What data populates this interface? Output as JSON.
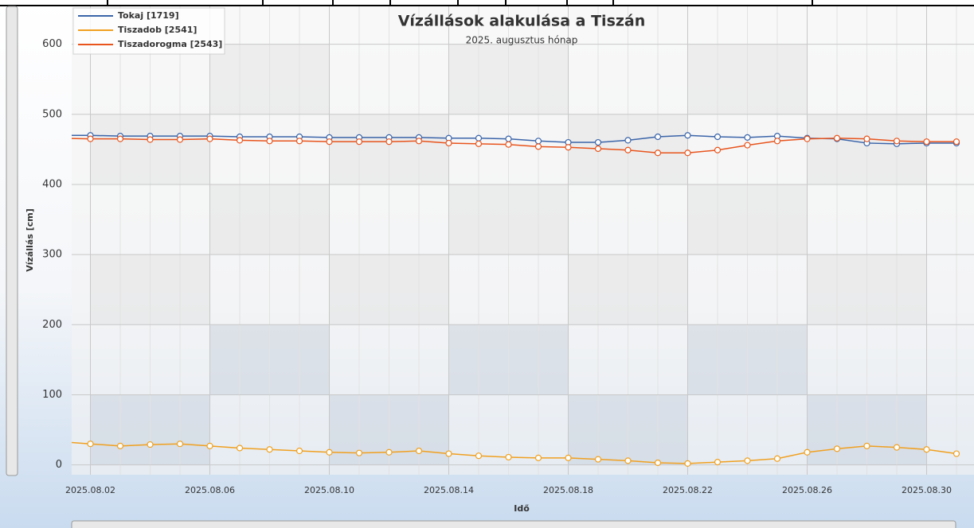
{
  "chart_data": {
    "type": "line",
    "title": "Vízállások alakulása a Tiszán",
    "subtitle": "2025. augusztus hónap",
    "y_label": "Vízállás [cm]",
    "x_label": "Idő",
    "x": [
      "2025.08.01",
      "2025.08.02",
      "2025.08.03",
      "2025.08.04",
      "2025.08.05",
      "2025.08.06",
      "2025.08.07",
      "2025.08.08",
      "2025.08.09",
      "2025.08.10",
      "2025.08.11",
      "2025.08.12",
      "2025.08.13",
      "2025.08.14",
      "2025.08.15",
      "2025.08.16",
      "2025.08.17",
      "2025.08.18",
      "2025.08.19",
      "2025.08.20",
      "2025.08.21",
      "2025.08.22",
      "2025.08.23",
      "2025.08.24",
      "2025.08.25",
      "2025.08.26",
      "2025.08.27",
      "2025.08.28",
      "2025.08.29",
      "2025.08.30",
      "2025.08.31"
    ],
    "series": [
      {
        "name": "Tokaj [1719]",
        "color": "#3a64a8",
        "values": [
          470,
          470,
          469,
          469,
          469,
          469,
          468,
          468,
          468,
          467,
          467,
          467,
          467,
          466,
          466,
          465,
          462,
          460,
          460,
          463,
          468,
          470,
          468,
          467,
          469,
          466,
          465,
          459,
          458,
          459,
          459
        ]
      },
      {
        "name": "Tiszadob [2541]",
        "color": "#f0a020",
        "values": [
          33,
          30,
          27,
          29,
          30,
          27,
          24,
          22,
          20,
          18,
          17,
          18,
          20,
          16,
          13,
          11,
          10,
          10,
          8,
          6,
          3,
          2,
          4,
          6,
          9,
          18,
          23,
          27,
          25,
          22,
          16
        ]
      },
      {
        "name": "Tiszadorogma [2543]",
        "color": "#e8541c",
        "values": [
          466,
          465,
          465,
          464,
          464,
          465,
          463,
          462,
          462,
          461,
          461,
          461,
          462,
          459,
          458,
          457,
          454,
          453,
          451,
          449,
          445,
          445,
          449,
          456,
          462,
          465,
          466,
          465,
          462,
          461,
          461
        ]
      }
    ],
    "xlim": [
      "2025.08.01",
      "2025.08.31"
    ],
    "ylim": [
      -14,
      654
    ],
    "yticks": [
      0,
      100,
      200,
      300,
      400,
      500,
      600
    ],
    "xticks": [
      "2025.08.02",
      "2025.08.06",
      "2025.08.10",
      "2025.08.14",
      "2025.08.18",
      "2025.08.22",
      "2025.08.26",
      "2025.08.30"
    ],
    "grid": true,
    "legend": "top-left"
  }
}
